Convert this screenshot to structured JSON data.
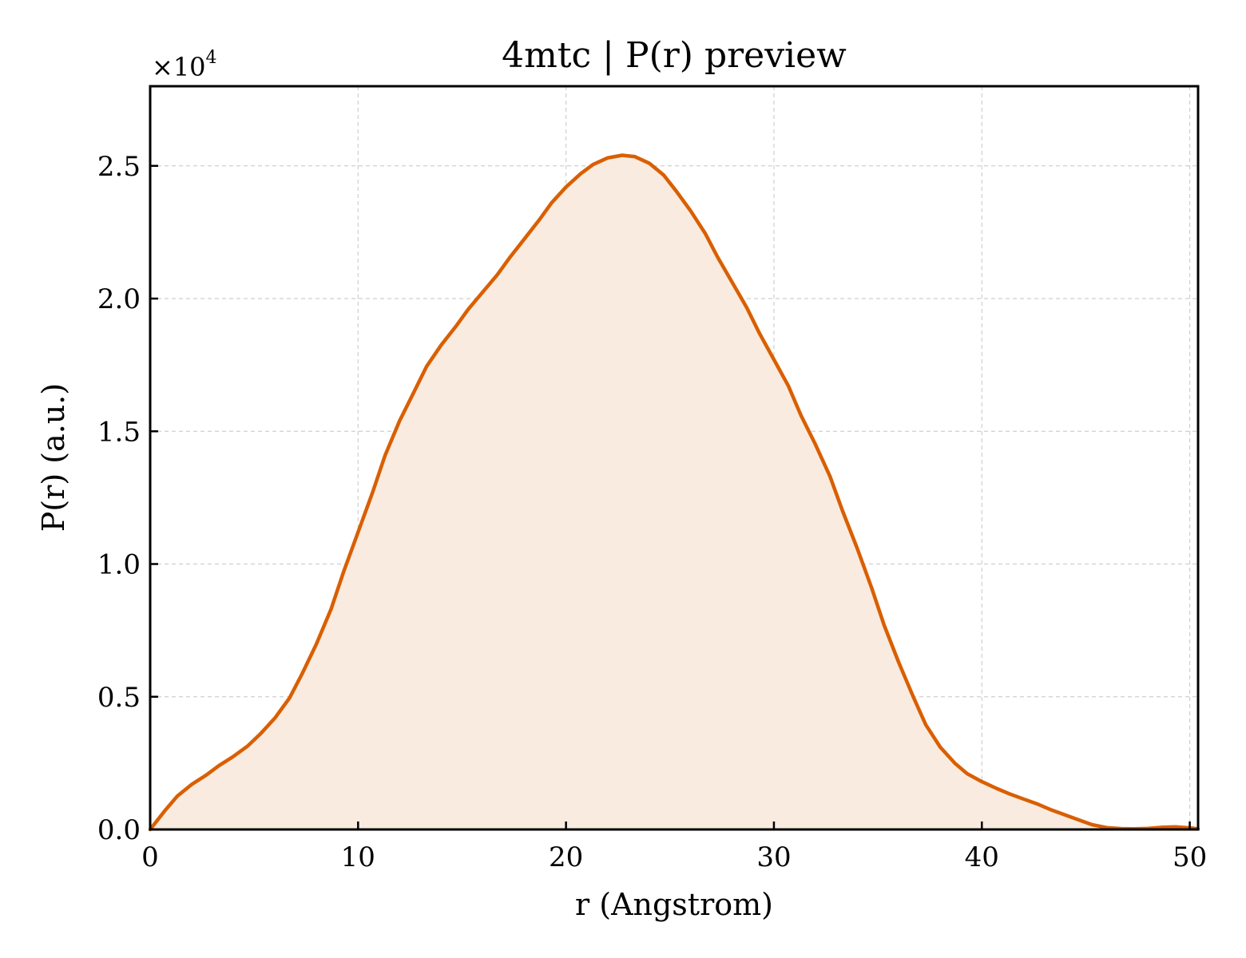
{
  "chart_data": {
    "type": "area",
    "title": "4mtc | P(r) preview",
    "xlabel": "r (Angstrom)",
    "ylabel": "P(r) (a.u.)",
    "y_scale_note": "×10",
    "y_scale_exponent": "4",
    "xlim": [
      0,
      50.4
    ],
    "ylim": [
      0,
      28000
    ],
    "xticks": [
      0,
      10,
      20,
      30,
      40,
      50
    ],
    "xtick_labels": [
      "0",
      "10",
      "20",
      "30",
      "40",
      "50"
    ],
    "yticks": [
      0,
      5000,
      10000,
      15000,
      20000,
      25000
    ],
    "ytick_labels": [
      "0.0",
      "0.5",
      "1.0",
      "1.5",
      "2.0",
      "2.5"
    ],
    "grid": true,
    "colors": {
      "line": "#d95f02",
      "fill": "#f9ebe0"
    },
    "series": [
      {
        "x": [
          0,
          0.7,
          1.3,
          2.0,
          2.7,
          3.3,
          4.0,
          4.7,
          5.3,
          6.0,
          6.7,
          7.3,
          8.0,
          8.7,
          9.3,
          10.0,
          10.7,
          11.3,
          12.0,
          12.7,
          13.3,
          14.0,
          14.7,
          15.3,
          16.0,
          16.7,
          17.3,
          18.0,
          18.7,
          19.3,
          20.0,
          20.7,
          21.3,
          22.0,
          22.7,
          23.3,
          24.0,
          24.7,
          25.3,
          26.0,
          26.7,
          27.3,
          28.0,
          28.7,
          29.3,
          30.0,
          30.7,
          31.3,
          32.0,
          32.7,
          33.3,
          34.0,
          34.7,
          35.3,
          36.0,
          36.7,
          37.3,
          38.0,
          38.7,
          39.3,
          40.0,
          40.7,
          41.3,
          42.0,
          42.7,
          43.3,
          44.0,
          44.7,
          45.3,
          46.0,
          46.7,
          47.3,
          48.0,
          48.7,
          49.3,
          50.0,
          50.4
        ],
        "values": [
          0,
          700,
          1250,
          1700,
          2050,
          2400,
          2750,
          3150,
          3600,
          4200,
          4950,
          5850,
          7000,
          8300,
          9700,
          11200,
          12700,
          14100,
          15400,
          16500,
          17450,
          18250,
          18950,
          19600,
          20250,
          20900,
          21550,
          22250,
          22950,
          23600,
          24200,
          24700,
          25050,
          25300,
          25400,
          25350,
          25100,
          24650,
          24050,
          23300,
          22450,
          21550,
          20600,
          19650,
          18700,
          17700,
          16700,
          15600,
          14500,
          13300,
          12000,
          10600,
          9100,
          7700,
          6300,
          5000,
          3950,
          3100,
          2500,
          2100,
          1800,
          1550,
          1350,
          1150,
          950,
          750,
          550,
          350,
          180,
          70,
          30,
          20,
          40,
          80,
          100,
          60,
          20
        ]
      }
    ]
  }
}
